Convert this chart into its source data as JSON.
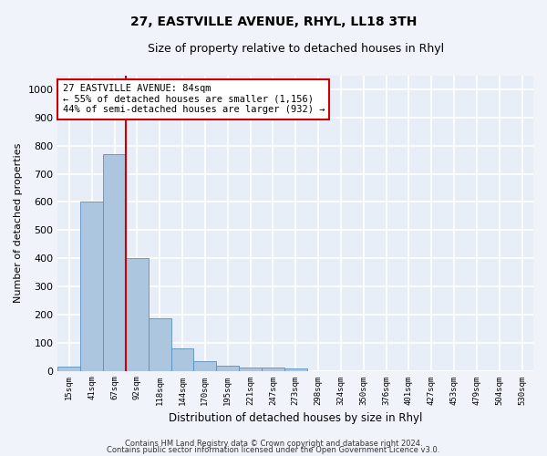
{
  "title": "27, EASTVILLE AVENUE, RHYL, LL18 3TH",
  "subtitle": "Size of property relative to detached houses in Rhyl",
  "xlabel": "Distribution of detached houses by size in Rhyl",
  "ylabel": "Number of detached properties",
  "bin_labels": [
    "15sqm",
    "41sqm",
    "67sqm",
    "92sqm",
    "118sqm",
    "144sqm",
    "170sqm",
    "195sqm",
    "221sqm",
    "247sqm",
    "273sqm",
    "298sqm",
    "324sqm",
    "350sqm",
    "376sqm",
    "401sqm",
    "427sqm",
    "453sqm",
    "479sqm",
    "504sqm",
    "530sqm"
  ],
  "bar_values": [
    15,
    600,
    770,
    400,
    185,
    78,
    35,
    17,
    12,
    12,
    7,
    0,
    0,
    0,
    0,
    0,
    0,
    0,
    0,
    0,
    0
  ],
  "bar_color": "#adc6e0",
  "bar_edge_color": "#5a8fc0",
  "vertical_line_bin": 3,
  "vertical_line_color": "#cc0000",
  "annotation_text": "27 EASTVILLE AVENUE: 84sqm\n← 55% of detached houses are smaller (1,156)\n44% of semi-detached houses are larger (932) →",
  "annotation_box_color": "#ffffff",
  "annotation_box_edge_color": "#cc0000",
  "ylim": [
    0,
    1050
  ],
  "yticks": [
    0,
    100,
    200,
    300,
    400,
    500,
    600,
    700,
    800,
    900,
    1000
  ],
  "bg_color": "#f0f4fa",
  "plot_bg_color": "#e8eef8",
  "grid_color": "#ffffff",
  "footer_line1": "Contains HM Land Registry data © Crown copyright and database right 2024.",
  "footer_line2": "Contains public sector information licensed under the Open Government Licence v3.0."
}
